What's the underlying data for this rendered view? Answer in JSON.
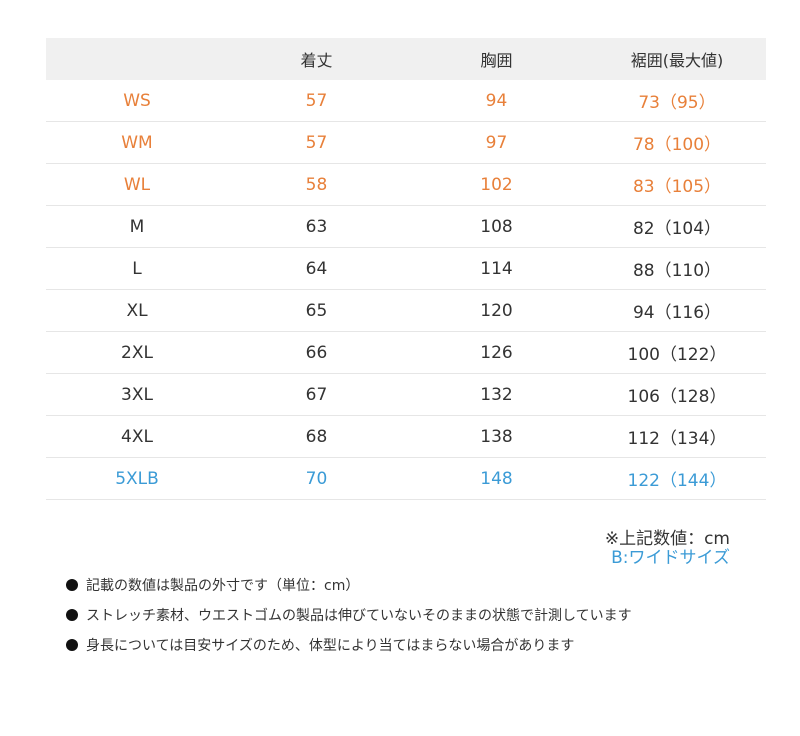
{
  "table": {
    "header": [
      "着丈",
      "胸囲",
      "裾囲(最大値)"
    ],
    "rows": [
      [
        "WS",
        "57",
        "94",
        "73（95）"
      ],
      [
        "WM",
        "57",
        "97",
        "78（100）"
      ],
      [
        "WL",
        "58",
        "102",
        "83（105）"
      ],
      [
        "M",
        "63",
        "108",
        "82（104）"
      ],
      [
        "L",
        "64",
        "114",
        "88（110）"
      ],
      [
        "XL",
        "65",
        "120",
        "94（116）"
      ],
      [
        "2XL",
        "66",
        "126",
        "100（122）"
      ],
      [
        "3XL",
        "67",
        "132",
        "106（128）"
      ],
      [
        "4XL",
        "68",
        "138",
        "112（134）"
      ],
      [
        "5XLB",
        "70",
        "148",
        "122（144）"
      ]
    ],
    "row_colors": [
      "#e8803a",
      "#e8803a",
      "#e8803a",
      "#333333",
      "#333333",
      "#333333",
      "#333333",
      "#333333",
      "#333333",
      "#3b9bd6"
    ]
  },
  "unit_note": "※上記数値：cm",
  "wide_note": "B:ワイドサイズ",
  "notes": [
    "記載の数値は製品の外寸です（単位：cm）",
    "ストレッチ素材、ウエストゴムの製品は伸びていないそのままの状態で計測しています",
    "身長については目安サイズのため、体型により当てはまらない場合があります"
  ]
}
